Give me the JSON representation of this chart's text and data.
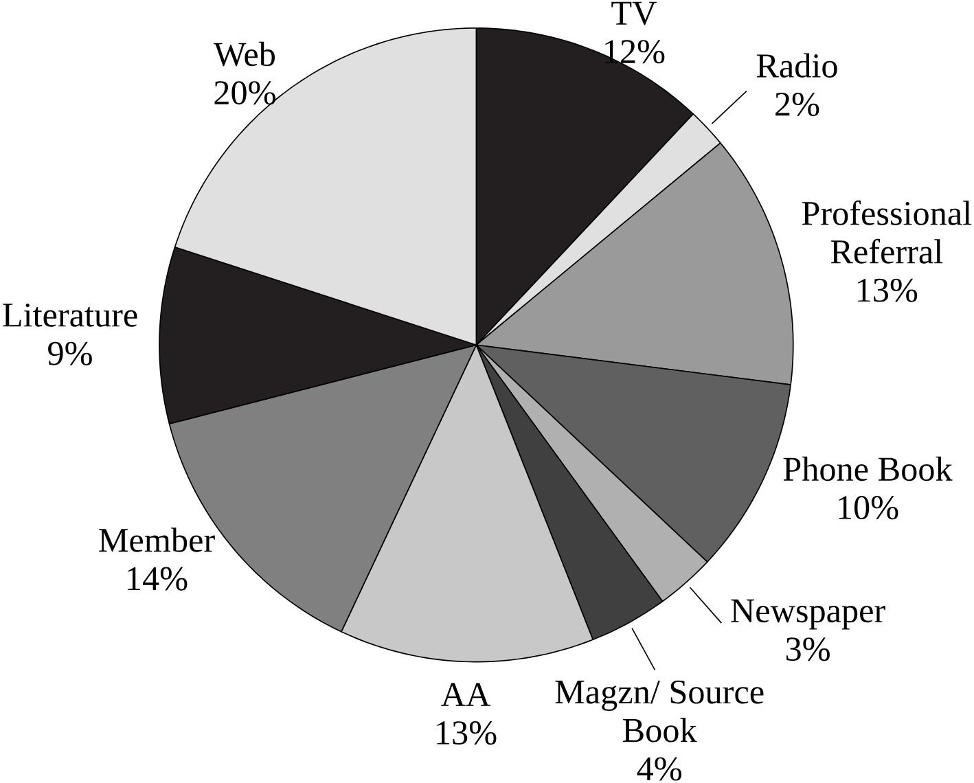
{
  "chart_data": {
    "type": "pie",
    "categories": [
      "TV",
      "Radio",
      "Professional Referral",
      "Phone Book",
      "Newspaper",
      "Magzn/ Source Book",
      "AA",
      "Member",
      "Literature",
      "Web"
    ],
    "values": [
      12,
      2,
      13,
      10,
      3,
      4,
      13,
      14,
      9,
      20
    ],
    "value_labels": [
      "12%",
      "2%",
      "13%",
      "10%",
      "3%",
      "4%",
      "13%",
      "14%",
      "9%",
      "20%"
    ],
    "colors": [
      "#231f20",
      "#e0e0e0",
      "#9a9a9a",
      "#606060",
      "#b0b0b0",
      "#404040",
      "#c8c8c8",
      "#808080",
      "#231f20",
      "#e0e0e0"
    ]
  }
}
